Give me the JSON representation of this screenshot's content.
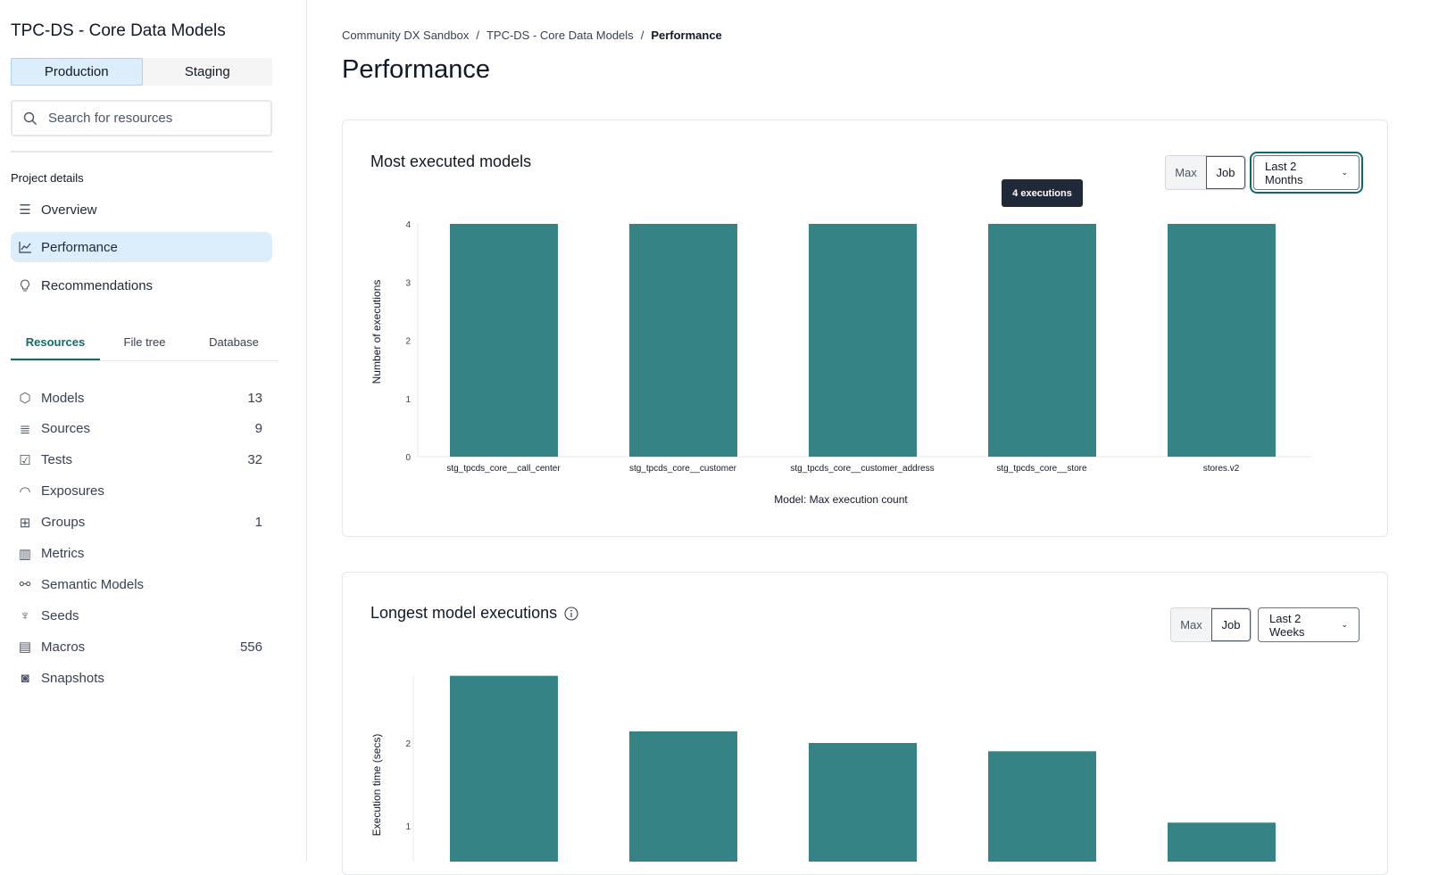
{
  "sidebar": {
    "project_title": "TPC-DS - Core Data Models",
    "environments": [
      "Production",
      "Staging"
    ],
    "search_placeholder": "Search for resources",
    "section_label": "Project details",
    "nav": [
      {
        "label": "Overview",
        "icon": "list-icon"
      },
      {
        "label": "Performance",
        "icon": "line-chart-icon"
      },
      {
        "label": "Recommendations",
        "icon": "lightbulb-icon"
      }
    ],
    "tabs": [
      "Resources",
      "File tree",
      "Database"
    ],
    "resources": [
      {
        "label": "Models",
        "count": "13",
        "icon": "cube-icon"
      },
      {
        "label": "Sources",
        "count": "9",
        "icon": "database-icon"
      },
      {
        "label": "Tests",
        "count": "32",
        "icon": "clipboard-check-icon"
      },
      {
        "label": "Exposures",
        "count": "",
        "icon": "gauge-icon"
      },
      {
        "label": "Groups",
        "count": "1",
        "icon": "grid-icon"
      },
      {
        "label": "Metrics",
        "count": "",
        "icon": "bar-chart-icon"
      },
      {
        "label": "Semantic Models",
        "count": "",
        "icon": "nodes-icon"
      },
      {
        "label": "Seeds",
        "count": "",
        "icon": "sprout-icon"
      },
      {
        "label": "Macros",
        "count": "556",
        "icon": "document-icon"
      },
      {
        "label": "Snapshots",
        "count": "",
        "icon": "camera-icon"
      }
    ]
  },
  "breadcrumb": [
    "Community DX Sandbox",
    "TPC-DS - Core Data Models",
    "Performance"
  ],
  "page_title": "Performance",
  "colors": {
    "bar": "#358385",
    "accent": "#0f6b6b",
    "active_bg": "#dcedfb"
  },
  "cards": [
    {
      "title": "Most executed models",
      "toggle": [
        "Max",
        "Job"
      ],
      "range": "Last 2 Months",
      "tooltip": "4 executions"
    },
    {
      "title": "Longest model executions",
      "toggle": [
        "Max",
        "Job"
      ],
      "range": "Last 2 Weeks"
    }
  ],
  "chart_data": [
    {
      "type": "bar",
      "title": "",
      "ylabel": "Number of executions",
      "xlabel": "Model: Max execution count",
      "ylim": [
        0,
        4
      ],
      "yticks": [
        0,
        1,
        2,
        3,
        4
      ],
      "categories": [
        "stg_tpcds_core__call_center",
        "stg_tpcds_core__customer",
        "stg_tpcds_core__customer_address",
        "stg_tpcds_core__store",
        "stores.v2"
      ],
      "values": [
        4,
        4,
        4,
        4,
        4
      ]
    },
    {
      "type": "bar",
      "title": "",
      "ylabel": "Execution time (secs)",
      "yticks": [
        1,
        2
      ],
      "values": [
        2.81,
        2.14,
        2.0,
        1.9,
        1.04
      ]
    }
  ]
}
